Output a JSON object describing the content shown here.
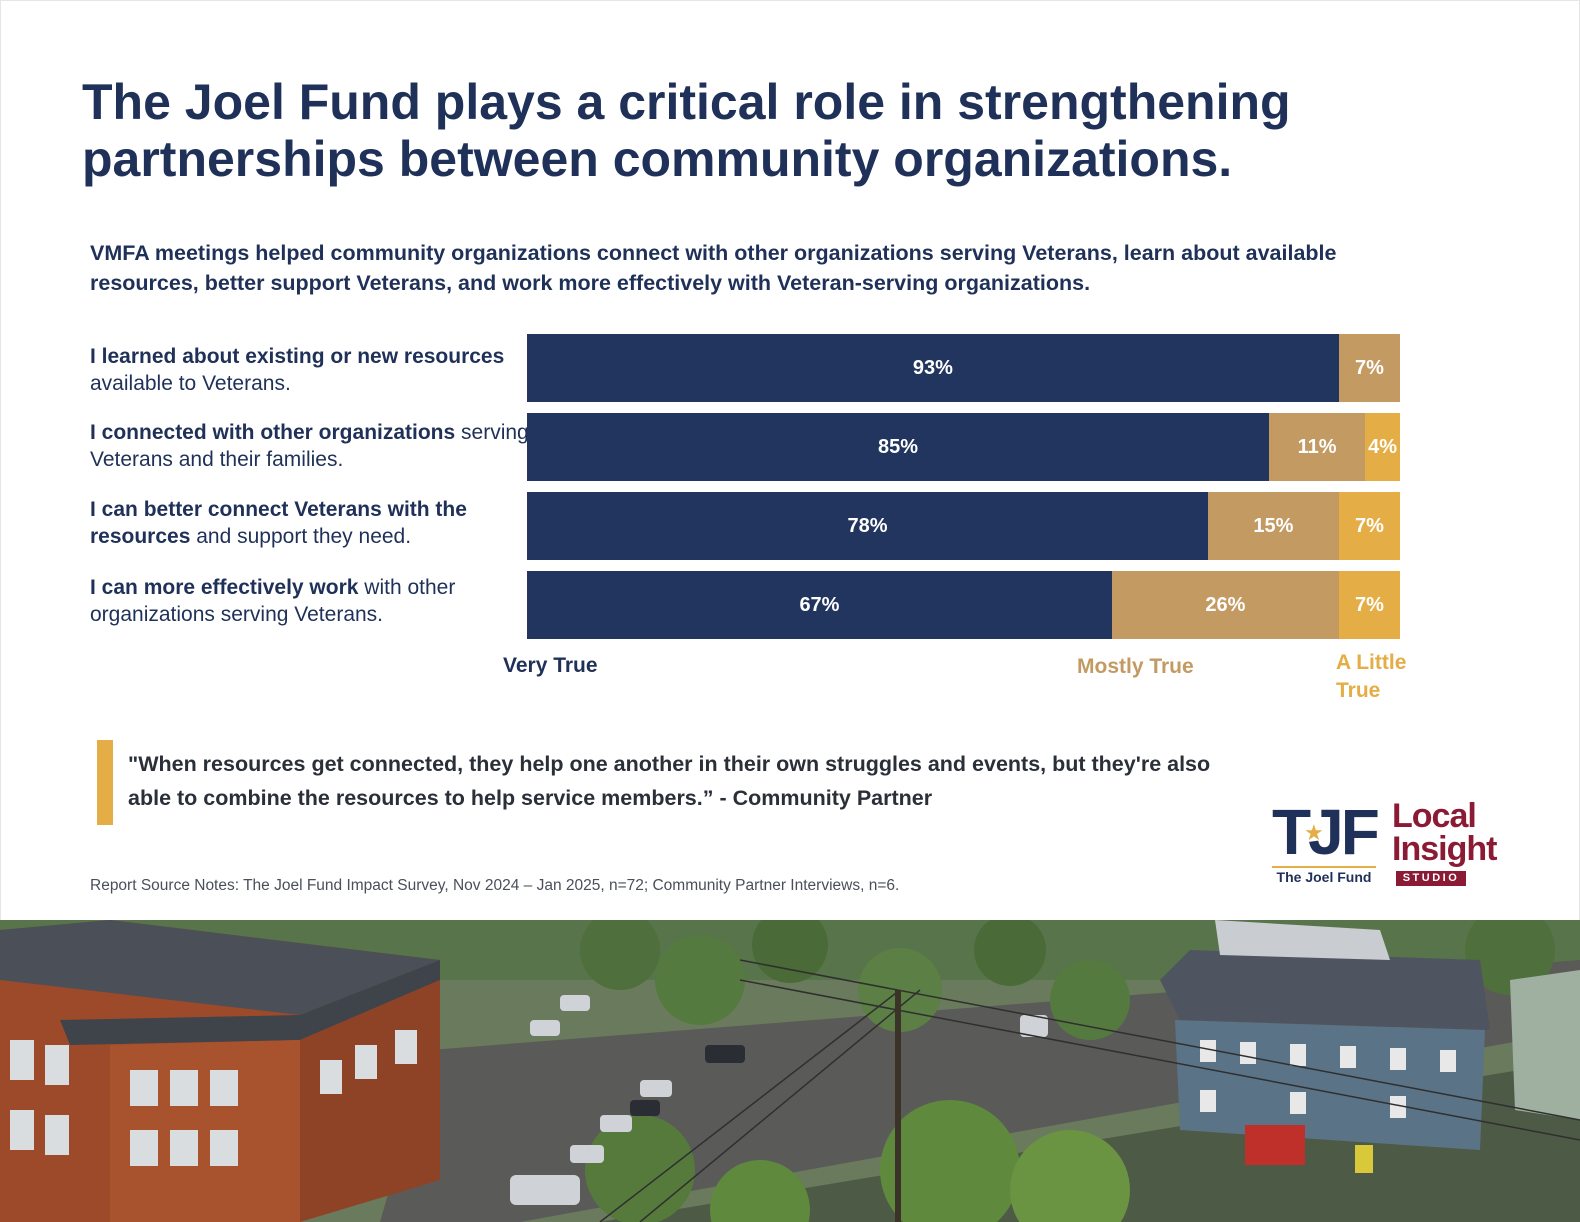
{
  "title": "The Joel Fund plays a critical role in strengthening partnerships between community organizations.",
  "subtitle": "VMFA meetings helped community organizations connect with other organizations serving Veterans, learn about available resources, better support Veterans, and work more effectively with Veteran-serving organizations.",
  "chart_data": {
    "type": "bar",
    "orientation": "horizontal",
    "stacked": true,
    "categories": [
      "I learned about existing or new resources available to Veterans.",
      "I connected with other organizations serving Veterans and their families.",
      "I can better connect Veterans with the resources and support they need.",
      "I can more effectively work with other organizations serving Veterans."
    ],
    "category_parts": [
      {
        "bold": "I learned about existing or new resources",
        "rest": " available to Veterans."
      },
      {
        "bold": "I connected with other organizations",
        "rest": " serving Veterans and their families."
      },
      {
        "bold": "I can better connect Veterans with the resources",
        "rest": " and support they need."
      },
      {
        "bold": "I can more effectively work",
        "rest": " with other organizations serving Veterans."
      }
    ],
    "series": [
      {
        "name": "Very True",
        "color": "#22355e",
        "values": [
          93,
          85,
          78,
          67
        ],
        "labels": [
          "93%",
          "85%",
          "78%",
          "67%"
        ]
      },
      {
        "name": "Mostly True",
        "color": "#c39a62",
        "values": [
          7,
          11,
          15,
          26
        ],
        "labels": [
          "7%",
          "11%",
          "15%",
          "26%"
        ]
      },
      {
        "name": "A Little True",
        "color": "#e4ad45",
        "values": [
          0,
          4,
          7,
          7
        ],
        "labels": [
          "",
          "4%",
          "7%",
          "7%"
        ]
      }
    ],
    "xlim": [
      0,
      100
    ],
    "legend": {
      "very_true": "Very True",
      "mostly_true": "Mostly True",
      "a_little_true_1": "A Little",
      "a_little_true_2": "True"
    }
  },
  "quote": "\"When resources get connected, they help one another in their own struggles and events, but they're also able to combine the resources to help service members.” - Community Partner",
  "source_notes": "Report Source Notes: The Joel Fund Impact Survey, Nov 2024 – Jan 2025, n=72; Community Partner Interviews, n=6.",
  "logos": {
    "tjf_letters": "TJF",
    "tjf_name": "The Joel Fund",
    "li_line1": "Local",
    "li_line2": "Insight",
    "li_studio": "STUDIO"
  },
  "colors": {
    "navy": "#1f3158",
    "tan": "#c39a62",
    "gold": "#e4ad45",
    "maroon": "#8b1a35"
  }
}
